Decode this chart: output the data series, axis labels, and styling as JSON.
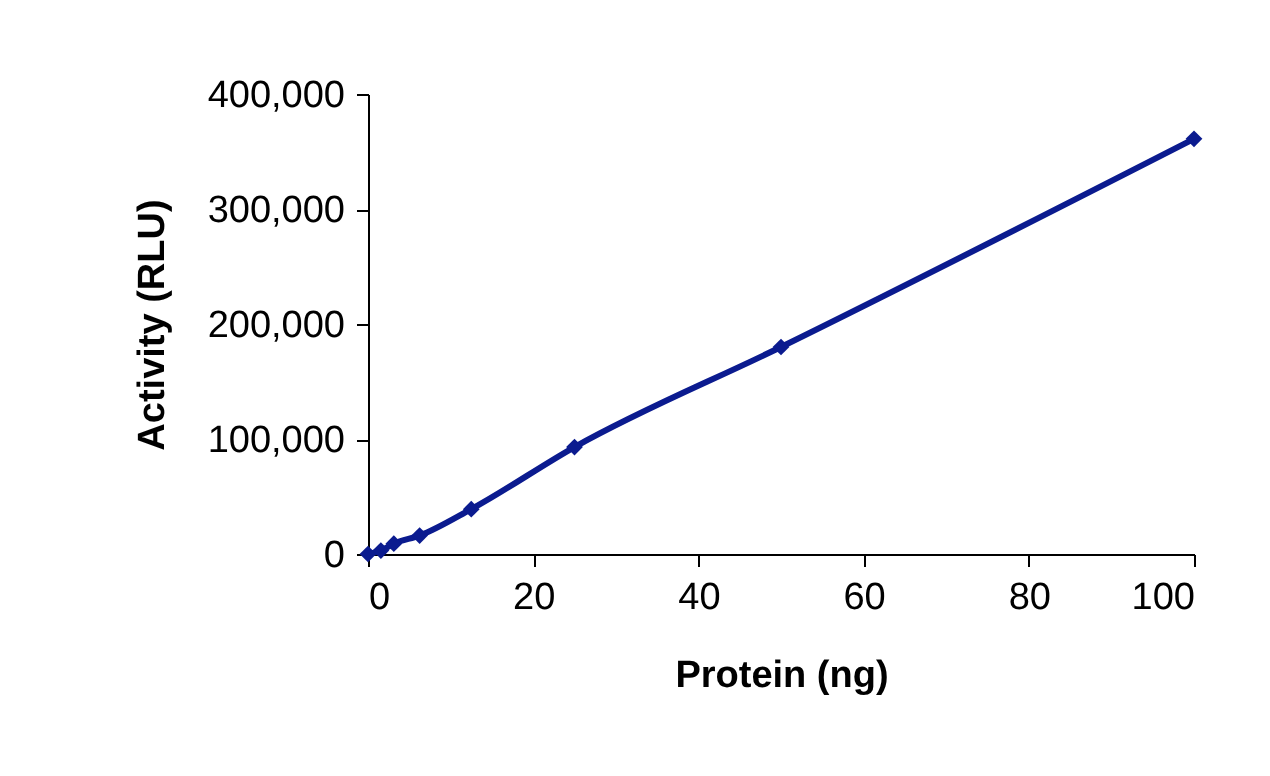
{
  "chart_data": {
    "type": "line",
    "xlabel": "Protein (ng)",
    "ylabel": "Activity (RLU)",
    "x": [
      0,
      1.56,
      3.125,
      6.25,
      12.5,
      25,
      50,
      100
    ],
    "series": [
      {
        "color": "#0b1b8f",
        "values": [
          0,
          3000,
          9000,
          16000,
          39000,
          93000,
          180000,
          361000
        ]
      }
    ],
    "xlim": [
      0,
      100
    ],
    "xticks": [
      0,
      20,
      40,
      60,
      80,
      100
    ],
    "ylim": [
      0,
      400000
    ],
    "yticks": [
      0,
      {
        "value": 100000,
        "label": "100,000"
      },
      {
        "value": 200000,
        "label": "200,000"
      },
      {
        "value": 300000,
        "label": "300,000"
      },
      {
        "value": 400000,
        "label": "400,000"
      }
    ],
    "marker": "diamond",
    "line_style": "solid",
    "grid": false,
    "legend": false
  }
}
